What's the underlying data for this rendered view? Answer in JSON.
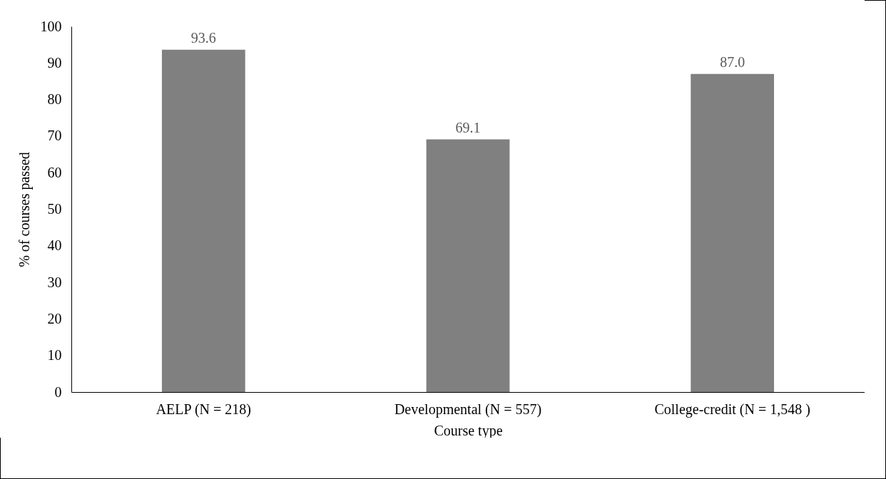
{
  "chart_data": {
    "type": "bar",
    "xlabel": "Course type",
    "ylabel": "% of courses passed",
    "categories": [
      "AELP (N = 218)",
      "Developmental (N = 557)",
      "College-credit (N = 1,548 )"
    ],
    "values": [
      93.6,
      69.1,
      87.0
    ],
    "value_labels": [
      "93.6",
      "69.1",
      "87.0"
    ],
    "color": "#808080",
    "ylim": [
      0,
      100
    ],
    "yticks": [
      0,
      10,
      20,
      30,
      40,
      50,
      60,
      70,
      80,
      90,
      100
    ],
    "grid": false
  }
}
